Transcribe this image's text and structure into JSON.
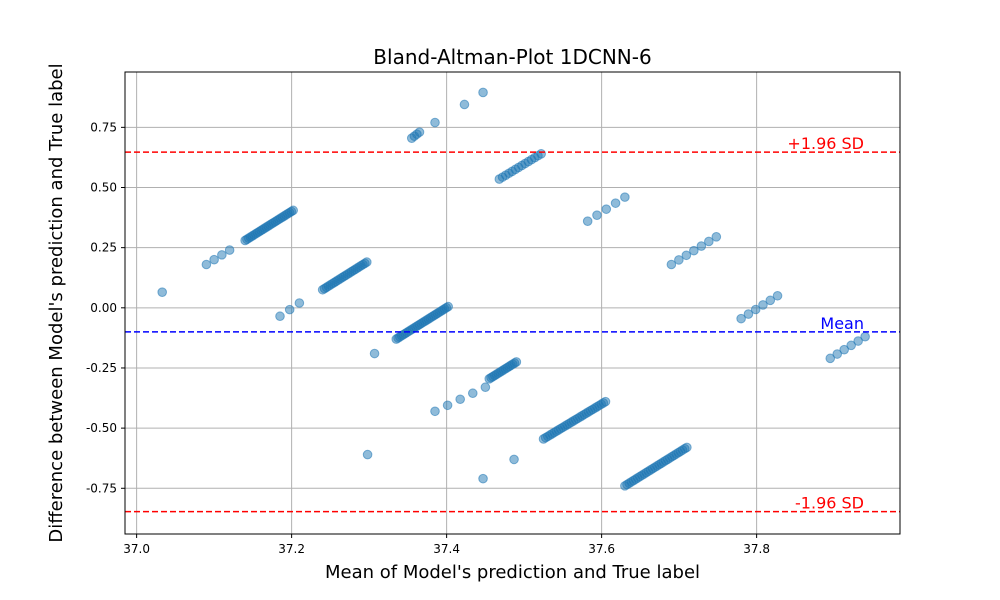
{
  "chart_data": {
    "type": "scatter",
    "title": "Bland-Altman-Plot 1DCNN-6",
    "xlabel": "Mean of Model's prediction and True label",
    "ylabel": "Difference between Model's prediction and True label",
    "xlim": [
      36.985,
      37.985
    ],
    "ylim": [
      -0.94,
      0.98
    ],
    "xticks": [
      "37.0",
      "37.2",
      "37.4",
      "37.6",
      "37.8"
    ],
    "yticks": [
      "-0.75",
      "-0.50",
      "-0.25",
      "0.00",
      "0.25",
      "0.50",
      "0.75"
    ],
    "grid": true,
    "point_color": "#1f77b4",
    "reference_lines": [
      {
        "label": "+1.96 SD",
        "y": 0.647,
        "color": "#ff0000"
      },
      {
        "label": "Mean",
        "y": -0.1,
        "color": "#0000ff"
      },
      {
        "label": "-1.96 SD",
        "y": -0.847,
        "color": "#ff0000"
      }
    ],
    "clusters": [
      {
        "x": [
          37.14,
          37.202
        ],
        "y": [
          0.28,
          0.405
        ],
        "n": 28
      },
      {
        "x": [
          37.09,
          37.12
        ],
        "y": [
          0.18,
          0.24
        ],
        "n": 4
      },
      {
        "x": [
          37.24,
          37.297
        ],
        "y": [
          0.075,
          0.19
        ],
        "n": 24
      },
      {
        "x": [
          37.335,
          37.402
        ],
        "y": [
          -0.13,
          0.005
        ],
        "n": 30
      },
      {
        "x": [
          37.185,
          37.21
        ],
        "y": [
          -0.035,
          0.02
        ],
        "n": 3
      },
      {
        "x": [
          37.455,
          37.49
        ],
        "y": [
          -0.295,
          -0.225
        ],
        "n": 16
      },
      {
        "x": [
          37.385,
          37.45
        ],
        "y": [
          -0.43,
          -0.33
        ],
        "n": 5
      },
      {
        "x": [
          37.525,
          37.605
        ],
        "y": [
          -0.545,
          -0.39
        ],
        "n": 30
      },
      {
        "x": [
          37.63,
          37.71
        ],
        "y": [
          -0.74,
          -0.58
        ],
        "n": 30
      },
      {
        "x": [
          37.355,
          37.365
        ],
        "y": [
          0.705,
          0.73
        ],
        "n": 4
      },
      {
        "x": [
          37.468,
          37.522
        ],
        "y": [
          0.535,
          0.64
        ],
        "n": 14
      },
      {
        "x": [
          37.582,
          37.63
        ],
        "y": [
          0.36,
          0.46
        ],
        "n": 5
      },
      {
        "x": [
          37.69,
          37.748
        ],
        "y": [
          0.18,
          0.295
        ],
        "n": 7
      },
      {
        "x": [
          37.78,
          37.827
        ],
        "y": [
          -0.045,
          0.05
        ],
        "n": 6
      },
      {
        "x": [
          37.895,
          37.94
        ],
        "y": [
          -0.21,
          -0.12
        ],
        "n": 6
      }
    ],
    "points": [
      {
        "x": 37.033,
        "y": 0.065
      },
      {
        "x": 37.385,
        "y": 0.77
      },
      {
        "x": 37.423,
        "y": 0.845
      },
      {
        "x": 37.447,
        "y": 0.895
      },
      {
        "x": 37.307,
        "y": -0.19
      },
      {
        "x": 37.298,
        "y": -0.61
      },
      {
        "x": 37.447,
        "y": -0.71
      },
      {
        "x": 37.487,
        "y": -0.63
      }
    ]
  }
}
